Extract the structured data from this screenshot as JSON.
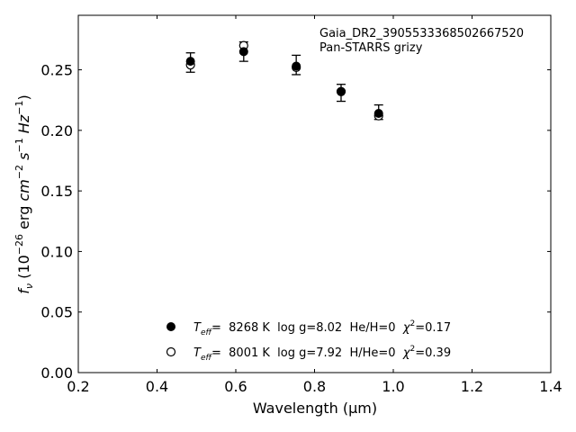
{
  "chart_data": {
    "type": "scatter",
    "xlabel": "Wavelength (μm)",
    "ylabel": "f_ν (10^-26 erg cm^-2 s^-1 Hz^-1)",
    "xlim": [
      0.2,
      1.4
    ],
    "ylim": [
      0.0,
      0.295
    ],
    "xticks": [
      0.2,
      0.4,
      0.6,
      0.8,
      1.0,
      1.2,
      1.4
    ],
    "xtick_labels": [
      "0.2",
      "0.4",
      "0.6",
      "0.8",
      "1.0",
      "1.2",
      "1.4"
    ],
    "yticks": [
      0.0,
      0.05,
      0.1,
      0.15,
      0.2,
      0.25
    ],
    "ytick_labels": [
      "0.00",
      "0.05",
      "0.10",
      "0.15",
      "0.20",
      "0.25"
    ],
    "grid": false,
    "annotation": [
      "Gaia_DR2_3905533368502667520",
      "Pan-STARRS grizy"
    ],
    "observed": {
      "x": [
        0.4849,
        0.6201,
        0.7535,
        0.8674,
        0.9628
      ],
      "y": [
        0.256,
        0.265,
        0.254,
        0.231,
        0.215
      ],
      "yerr": [
        0.008,
        0.008,
        0.008,
        0.007,
        0.006
      ],
      "marker": "errorbar"
    },
    "series": [
      {
        "marker": "filled-circle",
        "x": [
          0.4849,
          0.6201,
          0.7535,
          0.8674,
          0.9628
        ],
        "y": [
          0.257,
          0.265,
          0.253,
          0.232,
          0.214
        ]
      },
      {
        "marker": "open-circle",
        "x": [
          0.4849,
          0.6201,
          0.7535,
          0.8674,
          0.9628
        ],
        "y": [
          0.254,
          0.27,
          0.252,
          0.232,
          0.212
        ]
      }
    ],
    "legend_placement": "lower-center",
    "legend": [
      {
        "marker": "filled-circle",
        "teff_prefix": "T",
        "teff_sub": "eff",
        "text": "=  8268 K  log g=8.02  He/H=0  ",
        "chi_symbol": "χ",
        "chi_sup": "2",
        "chi_value": "=0.17"
      },
      {
        "marker": "open-circle",
        "teff_prefix": "T",
        "teff_sub": "eff",
        "text": "=  8001 K  log g=7.92  H/He=0  ",
        "chi_symbol": "χ",
        "chi_sup": "2",
        "chi_value": "=0.39"
      }
    ],
    "colors": {
      "marker": "#000000",
      "axes": "#000000",
      "background": "#ffffff"
    }
  }
}
